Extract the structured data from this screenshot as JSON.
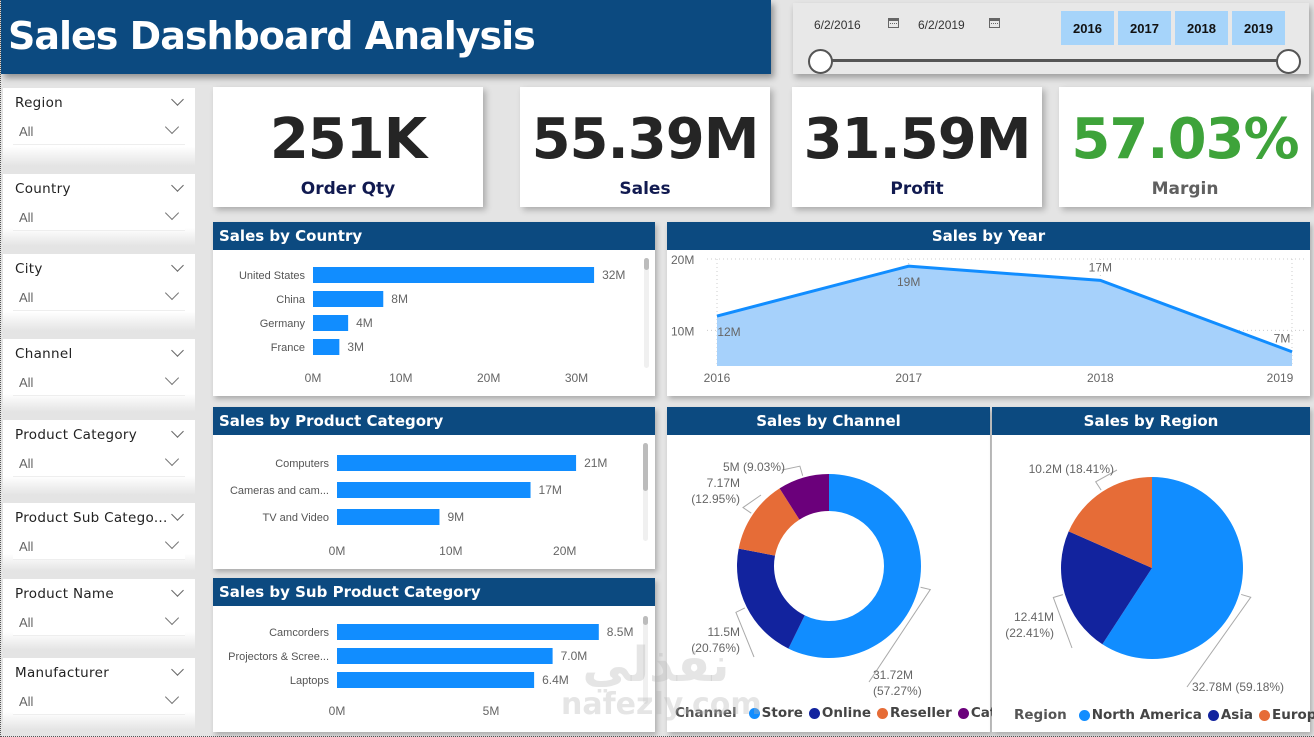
{
  "title": "Sales Dashboard Analysis",
  "date_slicer": {
    "start_date": "6/2/2016",
    "end_date": "6/2/2019",
    "years": [
      "2016",
      "2017",
      "2018",
      "2019"
    ],
    "range_start_fraction": 0,
    "range_end_fraction": 1
  },
  "filters": [
    {
      "label": "Region",
      "value": "All"
    },
    {
      "label": "Country",
      "value": "All"
    },
    {
      "label": "City",
      "value": "All"
    },
    {
      "label": "Channel",
      "value": "All"
    },
    {
      "label": "Product Category",
      "value": "All"
    },
    {
      "label": "Product Sub Catego...",
      "value": "All"
    },
    {
      "label": "Product Name",
      "value": "All"
    },
    {
      "label": "Manufacturer",
      "value": "All"
    }
  ],
  "kpis": [
    {
      "value": "251K",
      "label": "Order Qty",
      "color": "#252525",
      "label_color": "#111a50"
    },
    {
      "value": "55.39M",
      "label": "Sales",
      "color": "#252525",
      "label_color": "#111a50"
    },
    {
      "value": "31.59M",
      "label": "Profit",
      "color": "#252525",
      "label_color": "#111a50"
    },
    {
      "value": "57.03%",
      "label": "Margin",
      "color": "#3ea33a",
      "label_color": "#606060"
    }
  ],
  "colors": {
    "header": "#0c4a80",
    "bar": "#118dff",
    "area_fill": "#a6d1fb",
    "store": "#118dff",
    "online": "#12239e",
    "reseller": "#e66c37",
    "catalog": "#6b007b"
  },
  "watermark": {
    "arabic": "نفذلي",
    "latin": "nafezly.com"
  },
  "chart_data": [
    {
      "id": "sales_by_country",
      "type": "bar",
      "orientation": "horizontal",
      "title": "Sales by Country",
      "categories": [
        "United States",
        "China",
        "Germany",
        "France"
      ],
      "values": [
        32,
        8,
        4,
        3
      ],
      "data_labels": [
        "32M",
        "8M",
        "4M",
        "3M"
      ],
      "unit": "M",
      "xlim": [
        0,
        37
      ],
      "xticks": [
        0,
        10,
        20,
        30
      ],
      "xtick_labels": [
        "0M",
        "10M",
        "20M",
        "30M"
      ]
    },
    {
      "id": "sales_by_year",
      "type": "area",
      "title": "Sales by Year",
      "x": [
        "2016",
        "2017",
        "2018",
        "2019"
      ],
      "values": [
        12,
        19,
        17,
        7
      ],
      "data_labels": [
        "12M",
        "19M",
        "17M",
        "7M"
      ],
      "ylim": [
        5,
        20
      ],
      "yticks": [
        10,
        20
      ],
      "ytick_labels": [
        "10M",
        "20M"
      ],
      "grid": true
    },
    {
      "id": "sales_by_product_category",
      "type": "bar",
      "orientation": "horizontal",
      "title": "Sales by Product Category",
      "categories": [
        "Computers",
        "Cameras and cam...",
        "TV and Video"
      ],
      "values": [
        21,
        17,
        9
      ],
      "data_labels": [
        "21M",
        "17M",
        "9M"
      ],
      "xlim": [
        0,
        26
      ],
      "xticks": [
        0,
        10,
        20
      ],
      "xtick_labels": [
        "0M",
        "10M",
        "20M"
      ]
    },
    {
      "id": "sales_by_sub_product_category",
      "type": "bar",
      "orientation": "horizontal",
      "title": "Sales by Sub Product Category",
      "categories": [
        "Camcorders",
        "Projectors & Scree...",
        "Laptops"
      ],
      "values": [
        8.5,
        7.0,
        6.4
      ],
      "data_labels": [
        "8.5M",
        "7.0M",
        "6.4M"
      ],
      "xlim": [
        0,
        10
      ],
      "xticks": [
        0,
        5
      ],
      "xtick_labels": [
        "0M",
        "5M"
      ]
    },
    {
      "id": "sales_by_channel",
      "type": "pie",
      "donut": true,
      "title": "Sales by Channel",
      "legend_title": "Channel",
      "legend_position": "bottom",
      "slices": [
        {
          "name": "Store",
          "value": 31.72,
          "percent": 57.27,
          "label": "31.72M",
          "pct_label": "(57.27%)",
          "color": "#118dff"
        },
        {
          "name": "Online",
          "value": 11.5,
          "percent": 20.76,
          "label": "11.5M",
          "pct_label": "(20.76%)",
          "color": "#12239e"
        },
        {
          "name": "Reseller",
          "value": 7.17,
          "percent": 12.95,
          "label": "7.17M",
          "pct_label": "(12.95%)",
          "color": "#e66c37"
        },
        {
          "name": "Catalog",
          "value": 5,
          "percent": 9.03,
          "label": "5M",
          "pct_label": "(9.03%)",
          "color": "#6b007b"
        }
      ]
    },
    {
      "id": "sales_by_region",
      "type": "pie",
      "donut": false,
      "title": "Sales by Region",
      "legend_title": "Region",
      "legend_position": "bottom",
      "slices": [
        {
          "name": "North America",
          "value": 32.78,
          "percent": 59.18,
          "label": "32.78M",
          "pct_label": "(59.18%)",
          "color": "#118dff"
        },
        {
          "name": "Asia",
          "value": 12.41,
          "percent": 22.41,
          "label": "12.41M",
          "pct_label": "(22.41%)",
          "color": "#12239e"
        },
        {
          "name": "Europe",
          "value": 10.2,
          "percent": 18.41,
          "label": "10.2M",
          "pct_label": "(18.41%)",
          "color": "#e66c37"
        }
      ]
    }
  ]
}
